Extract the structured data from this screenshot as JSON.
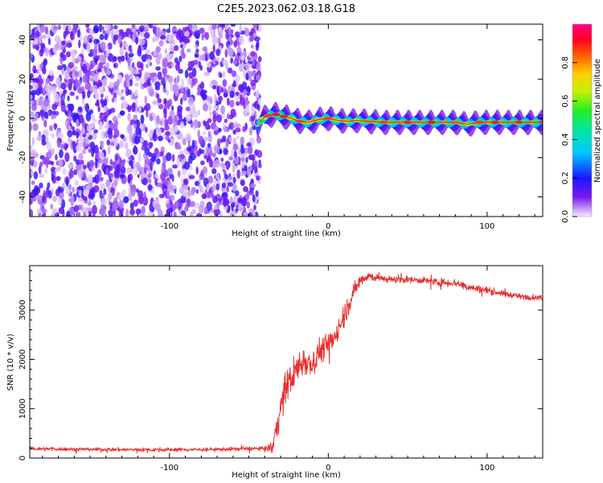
{
  "title": "C2E5.2023.062.03.18.G18",
  "chart_data": [
    {
      "type": "heatmap",
      "xlabel": "Height of straight line (km)",
      "ylabel": "Frequency (Hz)",
      "xlim": [
        -188,
        135
      ],
      "ylim": [
        -50,
        48
      ],
      "xticks": [
        -100,
        0,
        100
      ],
      "yticks": [
        -40,
        -20,
        0,
        20,
        40
      ],
      "colorbar": {
        "label": "Normalized spectral amplitude",
        "range": [
          0,
          1
        ],
        "ticks": [
          0.0,
          0.2,
          0.4,
          0.6,
          0.8
        ]
      },
      "noise_region": {
        "x_from": -188,
        "x_to": -43
      },
      "ridge": [
        {
          "x": -45,
          "freq": -5,
          "amp": 0.25
        },
        {
          "x": -43,
          "freq": -2,
          "amp": 0.45
        },
        {
          "x": -41,
          "freq": 0,
          "amp": 0.7
        },
        {
          "x": -38,
          "freq": 1.5,
          "amp": 0.85
        },
        {
          "x": -33,
          "freq": 2,
          "amp": 0.95
        },
        {
          "x": -28,
          "freq": 1,
          "amp": 0.9
        },
        {
          "x": -23,
          "freq": 0,
          "amp": 0.7
        },
        {
          "x": -18,
          "freq": -1.5,
          "amp": 0.85
        },
        {
          "x": -12,
          "freq": -2,
          "amp": 0.7
        },
        {
          "x": -6,
          "freq": -0.5,
          "amp": 0.75
        },
        {
          "x": 0,
          "freq": 0,
          "amp": 0.85
        },
        {
          "x": 6,
          "freq": -1,
          "amp": 0.7
        },
        {
          "x": 12,
          "freq": -1.5,
          "amp": 0.75
        },
        {
          "x": 18,
          "freq": -1,
          "amp": 0.7
        },
        {
          "x": 25,
          "freq": -1.5,
          "amp": 0.8
        },
        {
          "x": 35,
          "freq": -2,
          "amp": 0.85
        },
        {
          "x": 50,
          "freq": -2,
          "amp": 0.9
        },
        {
          "x": 65,
          "freq": -2,
          "amp": 0.92
        },
        {
          "x": 80,
          "freq": -2,
          "amp": 0.8
        },
        {
          "x": 88,
          "freq": -3,
          "amp": 0.7
        },
        {
          "x": 95,
          "freq": -2,
          "amp": 0.85
        },
        {
          "x": 105,
          "freq": -2,
          "amp": 0.9
        },
        {
          "x": 120,
          "freq": -2,
          "amp": 0.88
        },
        {
          "x": 135,
          "freq": -2,
          "amp": 0.85
        }
      ]
    },
    {
      "type": "line",
      "xlabel": "Height of straight line (km)",
      "ylabel": "SNR (10 * v/v)",
      "xlim": [
        -188,
        135
      ],
      "ylim": [
        0,
        3900
      ],
      "xticks": [
        -100,
        0,
        100
      ],
      "yticks": [
        0,
        1000,
        2000,
        3000
      ],
      "color": "#e83030",
      "series": [
        {
          "x": [
            -188,
            -160,
            -130,
            -100,
            -70,
            -50,
            -40,
            -35,
            -32,
            -28,
            -24,
            -20,
            -15,
            -10,
            -5,
            0,
            5,
            10,
            15,
            20,
            25,
            30,
            40,
            50,
            60,
            70,
            80,
            90,
            100,
            110,
            120,
            135
          ],
          "values": [
            190,
            180,
            170,
            170,
            175,
            190,
            190,
            230,
            700,
            1300,
            1600,
            1800,
            2000,
            1900,
            2200,
            2300,
            2500,
            2900,
            3300,
            3600,
            3700,
            3650,
            3620,
            3620,
            3600,
            3560,
            3550,
            3450,
            3400,
            3330,
            3280,
            3240
          ],
          "noise": [
            60,
            60,
            60,
            60,
            60,
            60,
            60,
            200,
            350,
            500,
            500,
            500,
            500,
            450,
            400,
            400,
            350,
            400,
            300,
            200,
            150,
            120,
            100,
            100,
            100,
            130,
            130,
            120,
            100,
            90,
            80,
            80
          ]
        }
      ]
    }
  ]
}
